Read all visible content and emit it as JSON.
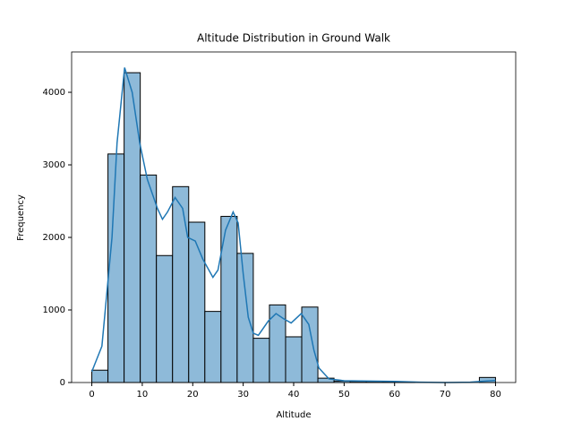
{
  "chart_data": {
    "type": "histogram",
    "title": "Altitude Distribution in Ground Walk",
    "x_label": "Altitude",
    "y_label": "Frequency",
    "bins": [
      0,
      3.2,
      6.4,
      9.6,
      12.8,
      16,
      19.2,
      22.4,
      25.6,
      28.8,
      32,
      35.2,
      38.4,
      41.6,
      44.8,
      48,
      51.2,
      54.4,
      57.6,
      60.8,
      64,
      67.2,
      70.4,
      73.6,
      76.8,
      80
    ],
    "values": [
      170,
      3150,
      4270,
      2860,
      1750,
      2700,
      2210,
      980,
      2290,
      1780,
      610,
      1070,
      630,
      1040,
      60,
      20,
      15,
      15,
      10,
      5,
      0,
      0,
      0,
      0,
      70
    ],
    "color": "#8ebad9",
    "edgecolor": "#000000",
    "kde": {
      "color": "#1f77b4",
      "x": [
        0,
        2,
        4,
        5,
        6.5,
        8,
        9.5,
        11,
        13,
        14,
        15,
        16.5,
        18,
        19,
        20.5,
        22,
        24,
        25,
        26.5,
        28,
        29,
        30,
        31,
        32,
        33,
        35,
        36.5,
        38,
        39.5,
        41.5,
        43,
        44,
        45,
        47,
        50,
        55,
        60,
        65,
        70,
        75,
        78,
        80
      ],
      "y": [
        150,
        500,
        2000,
        3300,
        4340,
        4000,
        3300,
        2800,
        2400,
        2250,
        2350,
        2550,
        2400,
        2000,
        1950,
        1700,
        1450,
        1550,
        2100,
        2350,
        2200,
        1500,
        900,
        680,
        650,
        850,
        950,
        880,
        820,
        950,
        800,
        450,
        200,
        50,
        25,
        20,
        15,
        5,
        0,
        5,
        20,
        30
      ]
    },
    "xlim": [
      -4,
      84
    ],
    "ylim": [
      0,
      4556
    ],
    "xticks": [
      0,
      10,
      20,
      30,
      40,
      50,
      60,
      70,
      80
    ],
    "yticks": [
      0,
      1000,
      2000,
      3000,
      4000
    ]
  }
}
